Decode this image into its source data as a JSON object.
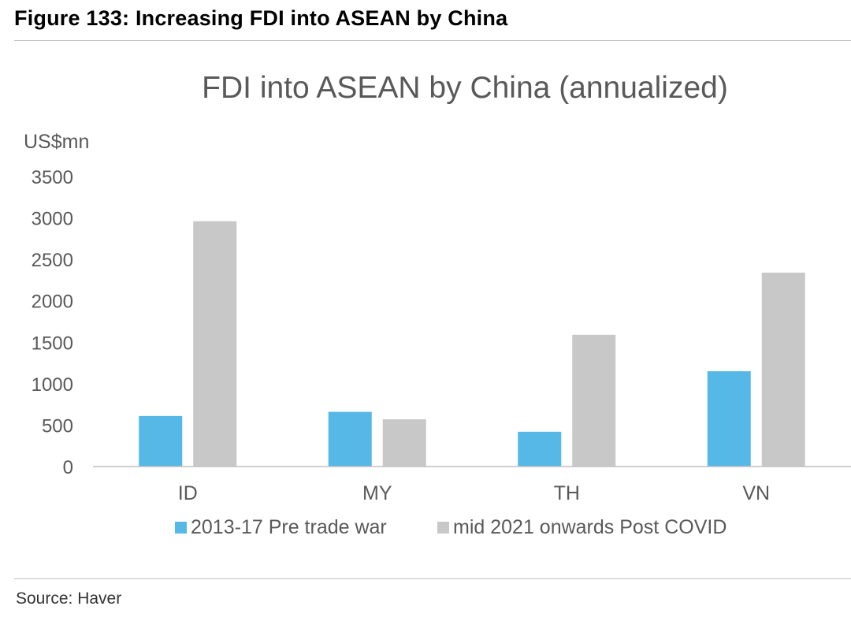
{
  "figure": {
    "title": "Figure 133: Increasing FDI into ASEAN by China",
    "source": "Source: Haver"
  },
  "colors": {
    "series_pre": "#56b8e6",
    "series_post": "#c8c8c8",
    "axis": "#bfbfbf",
    "text": "#595959"
  },
  "chart_data": {
    "type": "bar",
    "title": "FDI into ASEAN by China (annualized)",
    "ylabel": "US$mn",
    "xlabel": "",
    "ylim": [
      0,
      3500
    ],
    "yticks": [
      0,
      500,
      1000,
      1500,
      2000,
      2500,
      3000,
      3500
    ],
    "grid": false,
    "legend_position": "bottom",
    "categories": [
      "ID",
      "MY",
      "TH",
      "VN"
    ],
    "series": [
      {
        "name": "2013-17 Pre trade war",
        "values": [
          610,
          660,
          420,
          1150
        ],
        "color": "#56b8e6"
      },
      {
        "name": "mid 2021 onwards Post COVID",
        "values": [
          2960,
          570,
          1590,
          2340
        ],
        "color": "#c8c8c8"
      }
    ]
  }
}
